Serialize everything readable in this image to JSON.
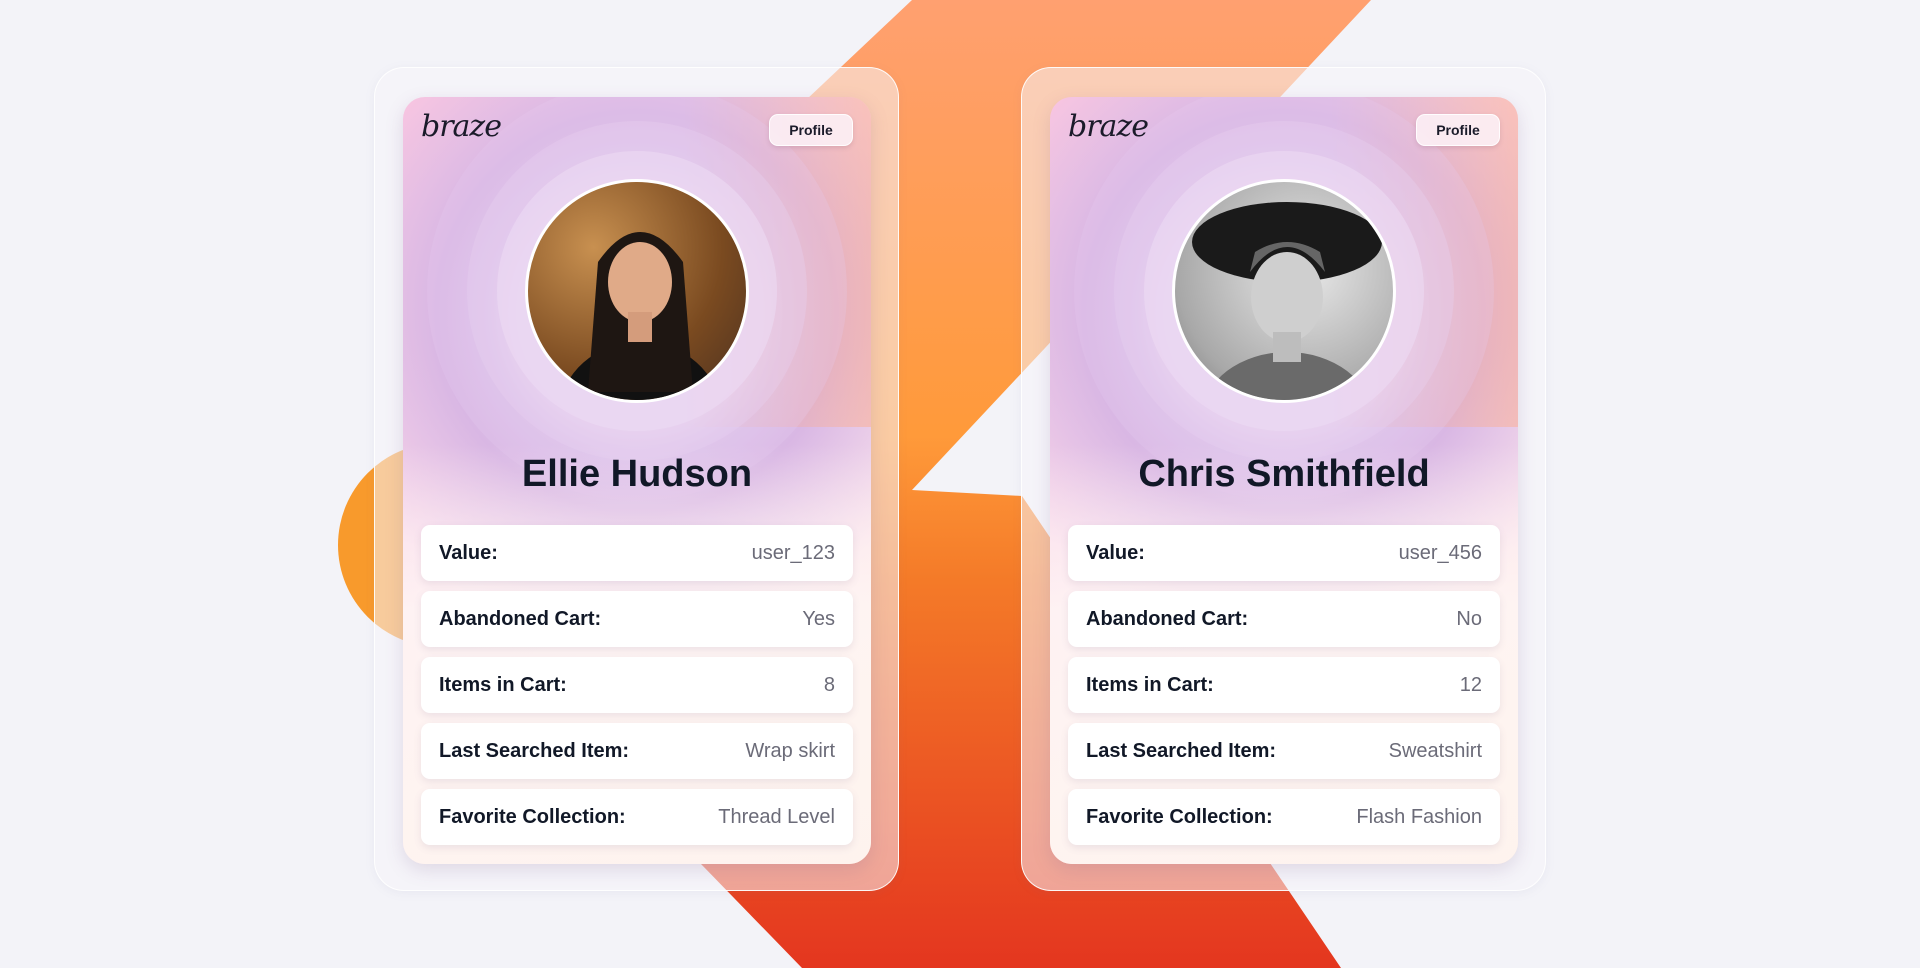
{
  "colors": {
    "background": "#f3f3f8",
    "bolt_top": "#ff9a5a",
    "bolt_bottom": "#e8402a",
    "name_text": "#111827",
    "value_text": "#6b6b78"
  },
  "cards": [
    {
      "logo": "braze",
      "button": "Profile",
      "name": "Ellie Hudson",
      "avatar_icon": "person-photo",
      "rows": [
        {
          "label": "Value:",
          "value": "user_123"
        },
        {
          "label": "Abandoned Cart:",
          "value": "Yes"
        },
        {
          "label": "Items in Cart:",
          "value": "8"
        },
        {
          "label": "Last Searched Item:",
          "value": "Wrap skirt"
        },
        {
          "label": "Favorite Collection:",
          "value": "Thread Level"
        }
      ]
    },
    {
      "logo": "braze",
      "button": "Profile",
      "name": "Chris Smithfield",
      "avatar_icon": "person-photo",
      "rows": [
        {
          "label": "Value:",
          "value": "user_456"
        },
        {
          "label": "Abandoned Cart:",
          "value": "No"
        },
        {
          "label": "Items in Cart:",
          "value": "12"
        },
        {
          "label": "Last Searched Item:",
          "value": "Sweatshirt"
        },
        {
          "label": "Favorite Collection:",
          "value": "Flash Fashion"
        }
      ]
    }
  ]
}
